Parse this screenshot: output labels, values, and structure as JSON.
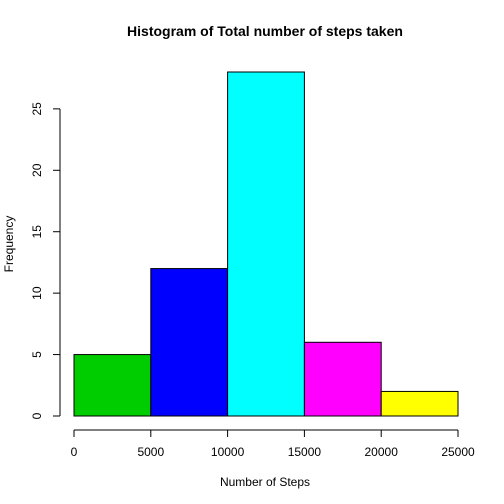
{
  "chart_data": {
    "type": "bar",
    "title": "Histogram of Total number of steps taken",
    "xlabel": "Number of Steps",
    "ylabel": "Frequency",
    "bins": [
      {
        "from": 0,
        "to": 5000,
        "count": 5,
        "color": "#00CD00"
      },
      {
        "from": 5000,
        "to": 10000,
        "count": 12,
        "color": "#0000FF"
      },
      {
        "from": 10000,
        "to": 15000,
        "count": 28,
        "color": "#00FFFF"
      },
      {
        "from": 15000,
        "to": 20000,
        "count": 6,
        "color": "#FF00FF"
      },
      {
        "from": 20000,
        "to": 25000,
        "count": 2,
        "color": "#FFFF00"
      }
    ],
    "xlim": [
      0,
      25000
    ],
    "ylim": [
      0,
      28
    ],
    "x_ticks": [
      0,
      5000,
      10000,
      15000,
      20000,
      25000
    ],
    "x_tick_labels": [
      "0",
      "5000",
      "10000",
      "15000",
      "20000",
      "25000"
    ],
    "y_ticks": [
      0,
      5,
      10,
      15,
      20,
      25
    ],
    "y_tick_labels": [
      "0",
      "5",
      "10",
      "15",
      "20",
      "25"
    ],
    "grid": false,
    "legend": "none"
  }
}
